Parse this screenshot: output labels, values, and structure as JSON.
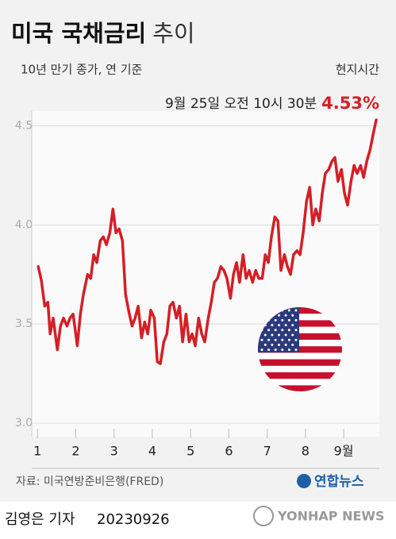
{
  "chart_data": {
    "type": "line",
    "title": "미국 국채금리",
    "title_suffix": "추이",
    "subtitle": "10년 만기 종가, 연 기준",
    "time_note": "현지시간",
    "annotation": {
      "text": "9월 25일 오전 10시 30분",
      "value": 4.53,
      "label": "4.53%"
    },
    "source": "자료: 미국연방준비은행(FRED)",
    "logo": "연합뉴스",
    "reporter": "김영은 기자",
    "date": "20230926",
    "agency": "YONHAP NEWS",
    "color": "#d41f26",
    "x": [
      1.02,
      1.1,
      1.19,
      1.27,
      1.33,
      1.41,
      1.52,
      1.6,
      1.68,
      1.77,
      1.85,
      1.93,
      2.04,
      2.12,
      2.2,
      2.31,
      2.39,
      2.47,
      2.55,
      2.64,
      2.72,
      2.8,
      2.89,
      2.97,
      3.05,
      3.13,
      3.22,
      3.3,
      3.38,
      3.47,
      3.55,
      3.63,
      3.72,
      3.8,
      3.88,
      3.96,
      4.05,
      4.13,
      4.21,
      4.3,
      4.38,
      4.46,
      4.54,
      4.63,
      4.71,
      4.79,
      4.88,
      4.96,
      5.04,
      5.12,
      5.21,
      5.29,
      5.37,
      5.46,
      5.54,
      5.62,
      5.7,
      5.79,
      5.87,
      5.95,
      6.04,
      6.12,
      6.2,
      6.28,
      6.37,
      6.45,
      6.53,
      6.62,
      6.7,
      6.78,
      6.87,
      6.95,
      7.03,
      7.11,
      7.2,
      7.28,
      7.36,
      7.45,
      7.53,
      7.61,
      7.69,
      7.78,
      7.86,
      7.94,
      8.03,
      8.11,
      8.19,
      8.27,
      8.36,
      8.44,
      8.52,
      8.61,
      8.69,
      8.77,
      8.85,
      8.94,
      9.02,
      9.1,
      9.19,
      9.27,
      9.35,
      9.44,
      9.52,
      9.6,
      9.69,
      9.77,
      9.85
    ],
    "values": [
      3.79,
      3.72,
      3.59,
      3.61,
      3.45,
      3.53,
      3.37,
      3.49,
      3.53,
      3.49,
      3.53,
      3.55,
      3.39,
      3.55,
      3.65,
      3.75,
      3.73,
      3.85,
      3.81,
      3.92,
      3.94,
      3.9,
      3.96,
      4.08,
      3.96,
      3.98,
      3.92,
      3.65,
      3.57,
      3.49,
      3.53,
      3.59,
      3.43,
      3.51,
      3.45,
      3.57,
      3.53,
      3.31,
      3.3,
      3.41,
      3.45,
      3.59,
      3.61,
      3.53,
      3.59,
      3.41,
      3.55,
      3.41,
      3.45,
      3.39,
      3.53,
      3.45,
      3.41,
      3.53,
      3.61,
      3.71,
      3.73,
      3.79,
      3.77,
      3.73,
      3.63,
      3.75,
      3.81,
      3.71,
      3.85,
      3.73,
      3.77,
      3.71,
      3.77,
      3.73,
      3.73,
      3.85,
      3.81,
      3.94,
      4.04,
      4.02,
      3.77,
      3.85,
      3.79,
      3.75,
      3.85,
      3.87,
      3.85,
      3.96,
      4.12,
      4.19,
      4.0,
      4.08,
      4.02,
      4.16,
      4.26,
      4.28,
      4.32,
      4.34,
      4.22,
      4.28,
      4.16,
      4.1,
      4.22,
      4.3,
      4.26,
      4.3,
      4.24,
      4.32,
      4.38,
      4.46,
      4.53
    ],
    "xlim": [
      0.85,
      9.93
    ],
    "xticks": [
      1,
      2,
      3,
      4,
      5,
      6,
      7,
      8,
      {
        "value": 9,
        "label": "9월"
      }
    ],
    "ylim": [
      3.0,
      4.55
    ],
    "yticks": [
      {
        "value": 3,
        "label": "3.0"
      },
      3.5,
      {
        "value": 4,
        "label": "4.0"
      },
      4.5
    ],
    "grid": true
  }
}
